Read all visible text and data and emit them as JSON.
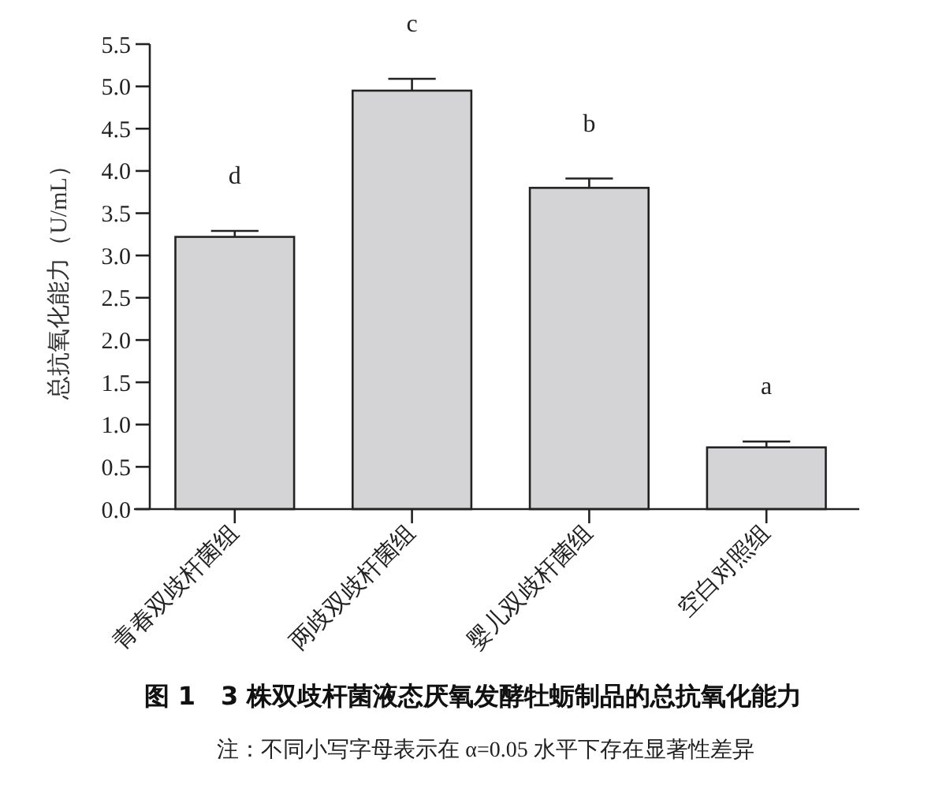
{
  "chart_data": {
    "type": "bar",
    "title": "图 1　3 株双歧杆菌液态厌氧发酵牡蛎制品的总抗氧化能力",
    "ylabel": "总抗氧化能力（U/mL）",
    "categories": [
      "青春双歧杆菌组",
      "两歧双歧杆菌组",
      "婴儿双歧杆菌组",
      "空白对照组"
    ],
    "values": [
      3.22,
      4.95,
      3.8,
      0.73
    ],
    "errors": [
      0.07,
      0.14,
      0.11,
      0.07
    ],
    "color": "#d4d4d6",
    "ylim": [
      0,
      5.5
    ],
    "yticks": [
      {
        "value": 0,
        "label": "0.0"
      },
      {
        "value": 0.5,
        "label": "0.5"
      },
      {
        "value": 1,
        "label": "1.0"
      },
      {
        "value": 1.5,
        "label": "1.5"
      },
      {
        "value": 2,
        "label": "2.0"
      },
      {
        "value": 2.5,
        "label": "2.5"
      },
      {
        "value": 3,
        "label": "3.0"
      },
      {
        "value": 3.5,
        "label": "3.5"
      },
      {
        "value": 4,
        "label": "4.0"
      },
      {
        "value": 4.5,
        "label": "4.5"
      },
      {
        "value": 5,
        "label": "5.0"
      },
      {
        "value": 5.5,
        "label": "5.5"
      }
    ],
    "grid": false,
    "annotations": [
      "d",
      "c",
      "b",
      "a",
      "注：不同小写字母表示在 α=0.05 水平下存在显著性差异"
    ]
  }
}
